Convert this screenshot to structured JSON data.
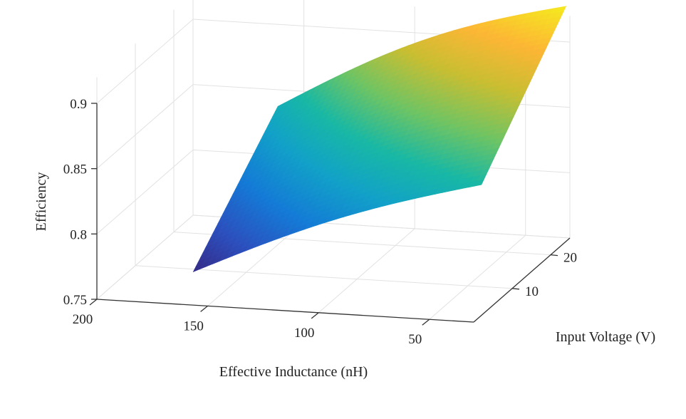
{
  "chart_data": {
    "type": "surface3d",
    "title": "",
    "xlabel": "Effective Inductance (nH)",
    "ylabel": "Input Voltage (V)",
    "zlabel": "Efficiency",
    "xlim": [
      200,
      30
    ],
    "ylim": [
      0,
      25
    ],
    "zlim": [
      0.75,
      0.92
    ],
    "x_ticks": [
      "200",
      "150",
      "100",
      "50"
    ],
    "y_ticks": [
      "10",
      "20"
    ],
    "z_ticks": [
      "0.75",
      "0.8",
      "0.85",
      "0.9"
    ],
    "grid": true,
    "colormap": "parula",
    "surface": {
      "inductance_range": [
        30,
        160
      ],
      "voltage_range": [
        2,
        24
      ],
      "corners": {
        "L160_V2": 0.77,
        "L160_V24": 0.84,
        "L30_V2": 0.85,
        "L30_V24": 0.93
      }
    }
  }
}
